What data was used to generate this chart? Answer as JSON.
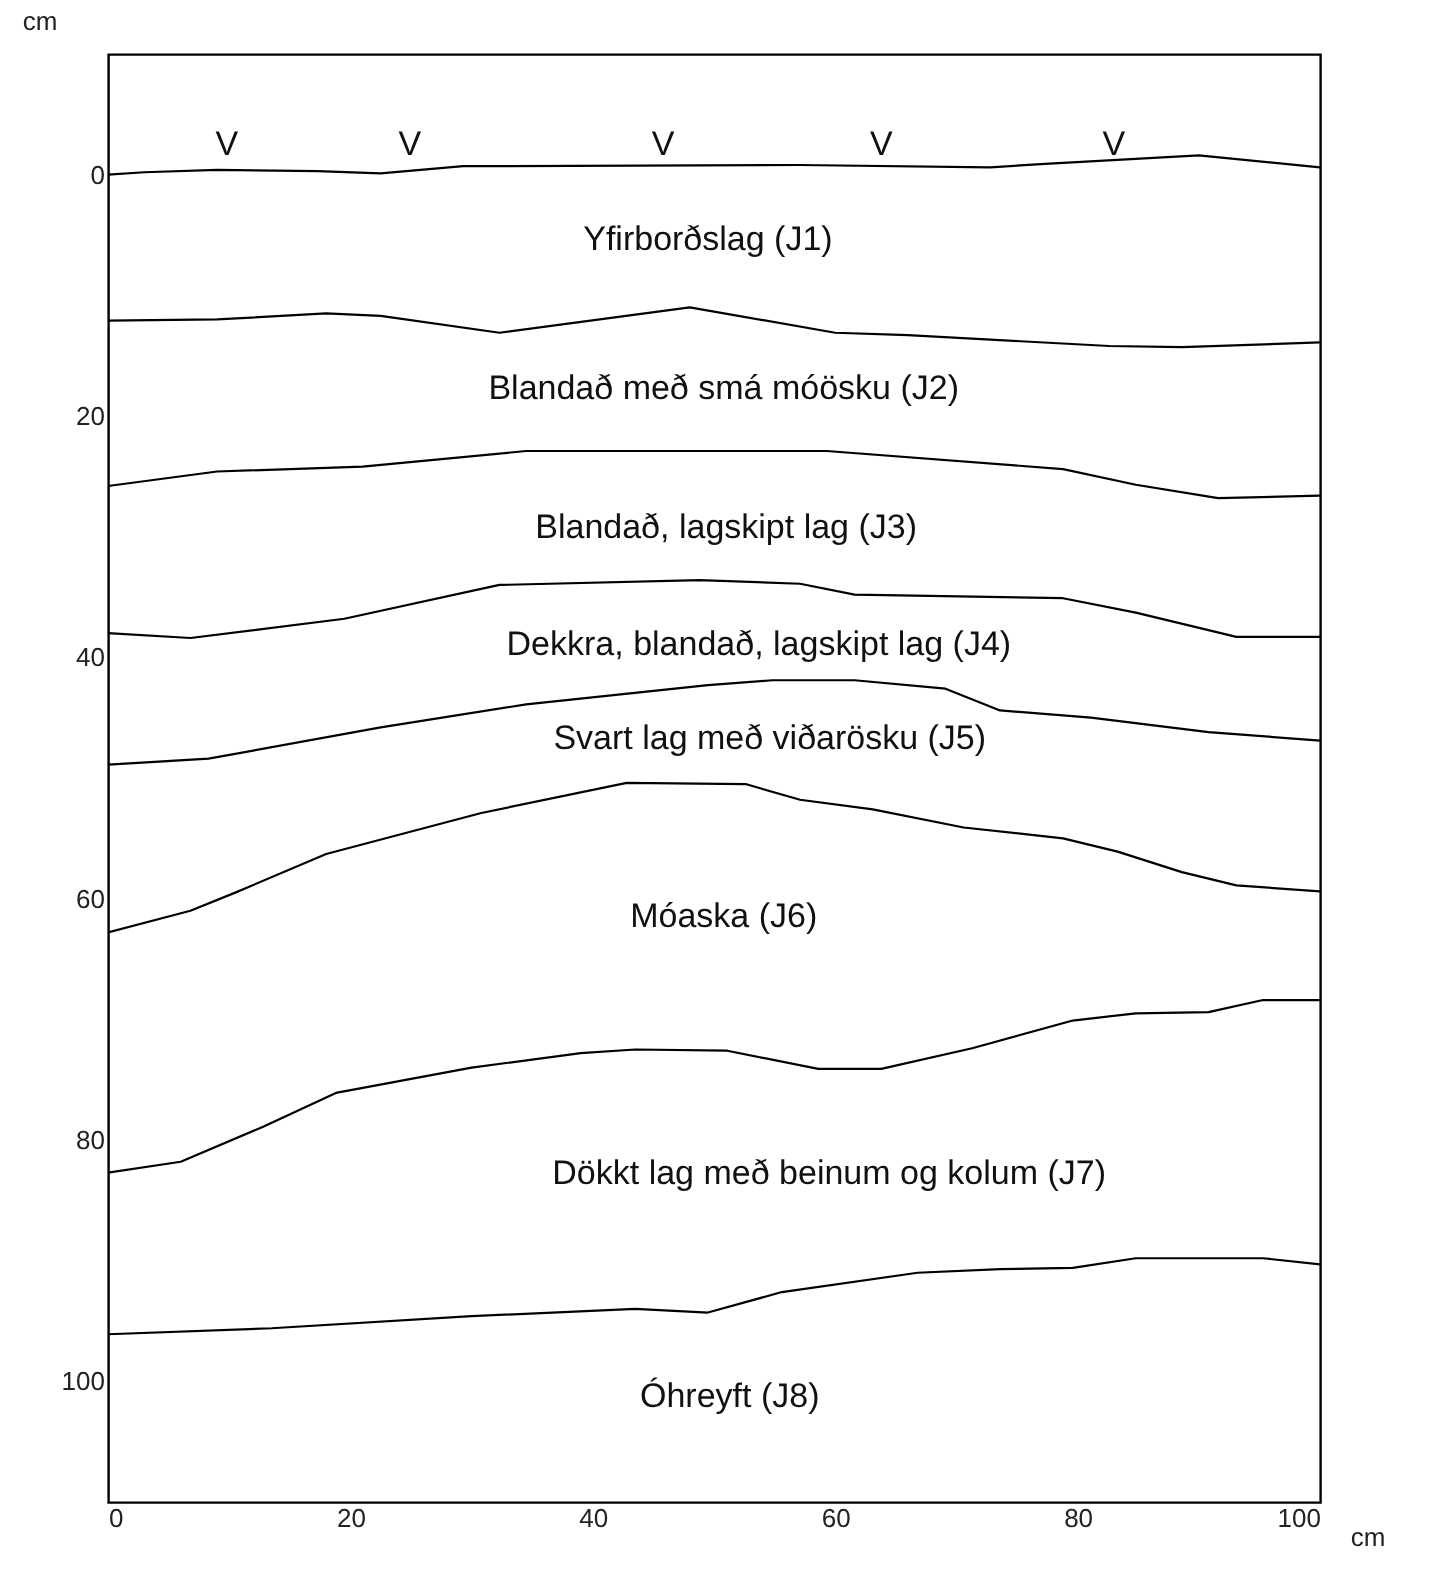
{
  "chart_data": {
    "type": "line",
    "xlabel": "cm",
    "ylabel": "cm",
    "xlim": [
      0,
      100
    ],
    "xticks": [
      0,
      20,
      40,
      60,
      80,
      100
    ],
    "ylim": [
      110,
      -10
    ],
    "yticks": [
      0,
      20,
      40,
      60,
      80,
      100
    ],
    "grid": false,
    "legend": false,
    "marker": "none",
    "line_style": "solid",
    "series": [
      {
        "color": "#000000",
        "x": [
          0,
          3,
          9,
          17.3,
          22.5,
          29.3,
          57,
          72.8,
          77.3,
          90,
          100
        ],
        "values": [
          0,
          -0.2,
          -0.4,
          -0.3,
          -0.1,
          -0.7,
          -0.8,
          -0.6,
          -0.9,
          -1.6,
          -0.6
        ]
      },
      {
        "color": "#000000",
        "x": [
          0,
          9,
          18,
          22.5,
          32.3,
          48,
          60,
          66,
          82.6,
          88.6,
          100
        ],
        "values": [
          12.1,
          12,
          11.5,
          11.7,
          13.1,
          11.0,
          13.1,
          13.3,
          14.2,
          14.3,
          13.9
        ]
      },
      {
        "color": "#000000",
        "x": [
          0,
          9,
          21,
          34.5,
          59.3,
          78.8,
          84.8,
          91.6,
          100
        ],
        "values": [
          25.8,
          24.6,
          24.2,
          22.9,
          22.9,
          24.4,
          25.7,
          26.8,
          26.6
        ]
      },
      {
        "color": "#000000",
        "x": [
          0,
          6.8,
          19.5,
          32.3,
          48.8,
          57.1,
          61.6,
          78.8,
          84.8,
          93.1,
          100
        ],
        "values": [
          38.0,
          38.4,
          36.8,
          34.0,
          33.6,
          33.9,
          34.8,
          35.1,
          36.3,
          38.3,
          38.3
        ]
      },
      {
        "color": "#000000",
        "x": [
          0,
          8.3,
          22.5,
          34.5,
          49.5,
          54.8,
          61.6,
          69.1,
          73.6,
          81.1,
          90.8,
          100
        ],
        "values": [
          48.9,
          48.4,
          45.8,
          43.9,
          42.3,
          41.9,
          41.9,
          42.6,
          44.4,
          45.0,
          46.2,
          46.9
        ]
      },
      {
        "color": "#000000",
        "x": [
          0,
          6.8,
          10.5,
          18.0,
          30.8,
          42.8,
          52.6,
          57.1,
          63.1,
          70.6,
          78.8,
          83.3,
          88.6,
          93.1,
          100
        ],
        "values": [
          62.8,
          61.0,
          59.5,
          56.3,
          52.9,
          50.4,
          50.5,
          51.8,
          52.6,
          54.1,
          55.0,
          56.1,
          57.8,
          58.9,
          59.4
        ]
      },
      {
        "color": "#000000",
        "x": [
          0,
          6,
          12.8,
          18.8,
          30.0,
          39.0,
          43.5,
          51.1,
          58.6,
          63.8,
          71.3,
          79.6,
          84.8,
          90.8,
          95.3,
          100
        ],
        "values": [
          82.7,
          81.8,
          78.9,
          76.1,
          74.0,
          72.8,
          72.5,
          72.6,
          74.1,
          74.1,
          72.4,
          70.1,
          69.5,
          69.4,
          68.4,
          68.4
        ]
      },
      {
        "color": "#000000",
        "x": [
          0,
          13.5,
          30.0,
          43.5,
          49.5,
          55.6,
          66.8,
          73.6,
          79.6,
          84.8,
          95.3,
          100
        ],
        "values": [
          96.1,
          95.6,
          94.6,
          94.0,
          94.3,
          92.6,
          91.0,
          90.7,
          90.6,
          89.8,
          89.8,
          90.3
        ]
      }
    ],
    "annotations": [
      "V",
      "V",
      "V",
      "V",
      "V",
      "Yfirborðslag (J1)",
      "Blandað með smá móösku (J2)",
      "Blandað, lagskipt lag (J3)",
      "Dekkra, blandað, lagskipt lag (J4)",
      "Svart lag með viðarösku (J5)",
      "Móaska (J6)",
      "Dökkt lag með beinum og kolum (J7)",
      "Óhreyft (J8)"
    ]
  }
}
